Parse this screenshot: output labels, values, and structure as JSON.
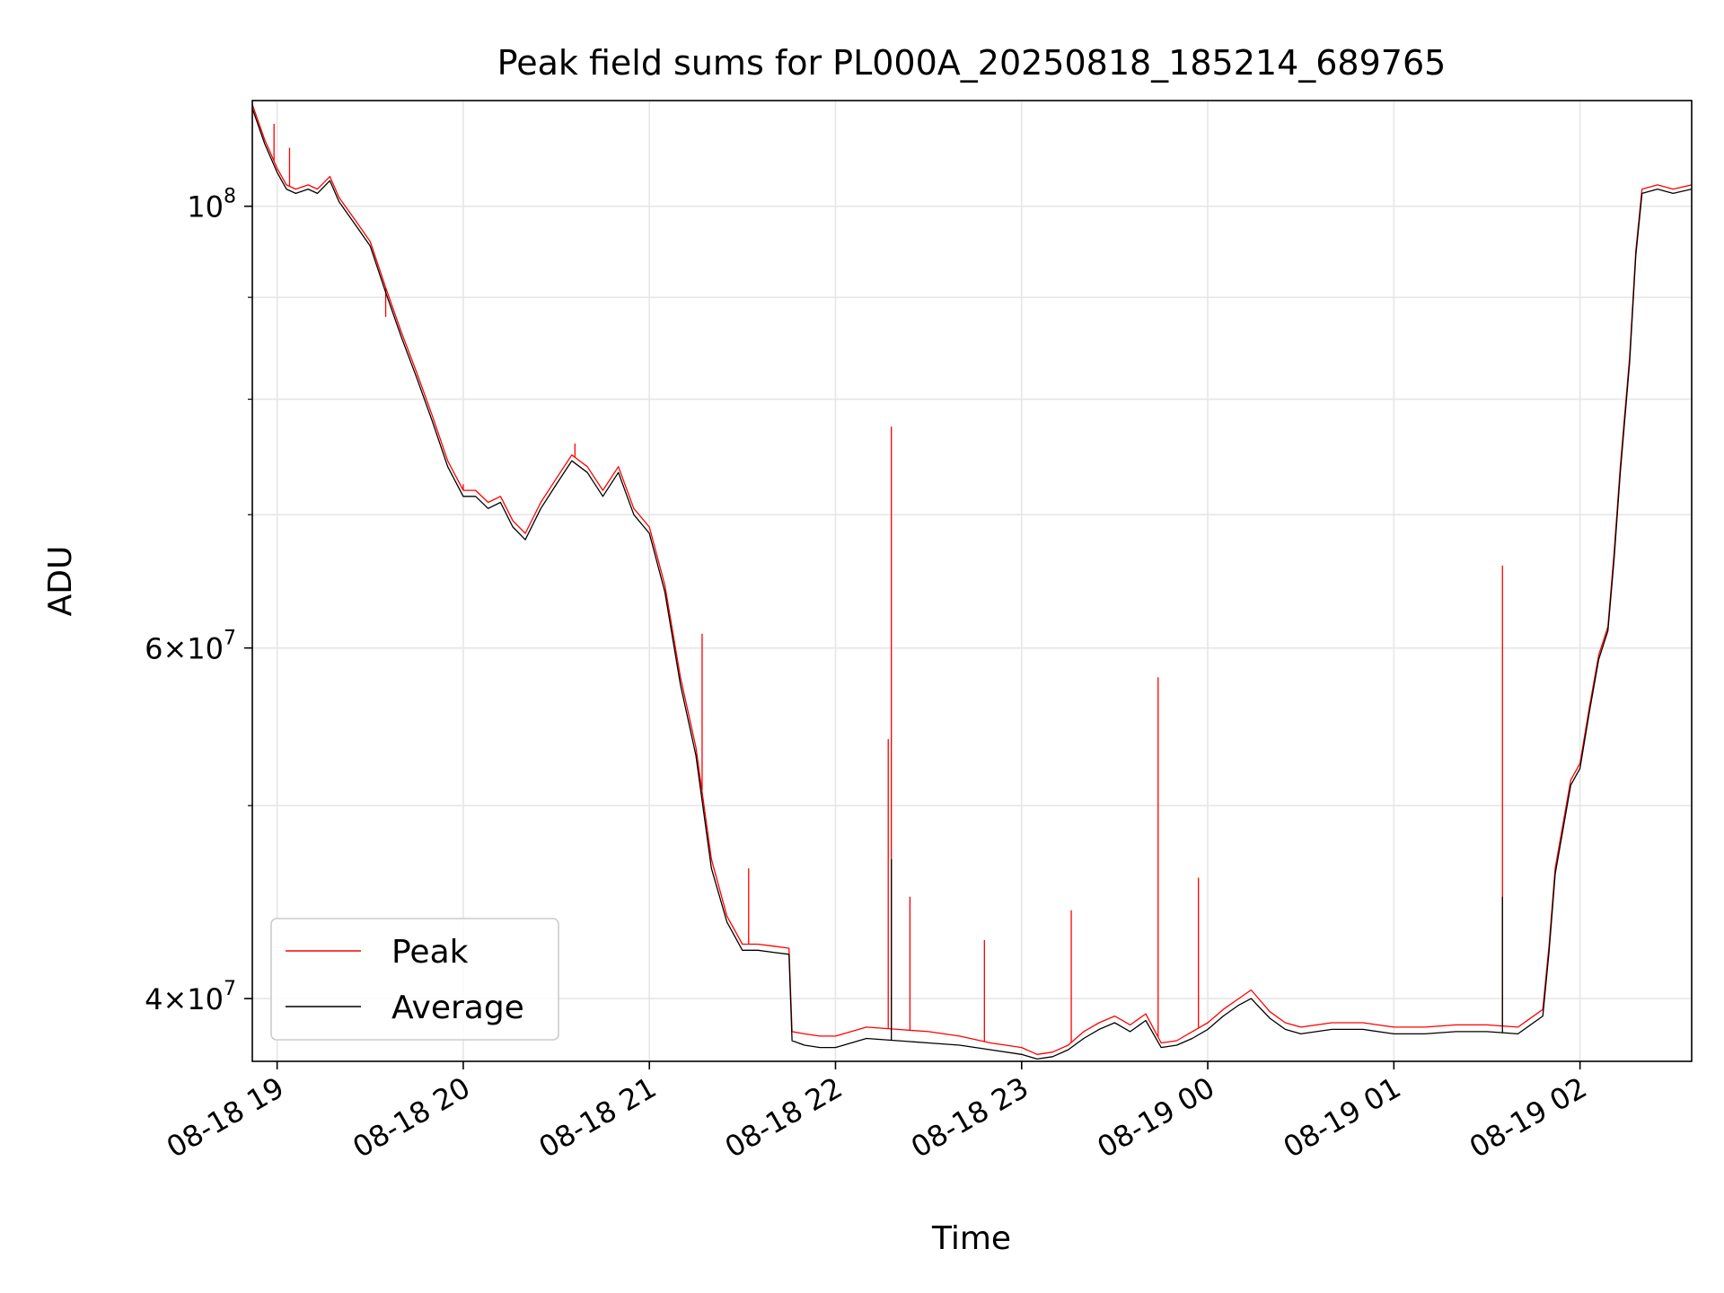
{
  "chart_data": {
    "type": "line",
    "title": "Peak field sums for PL000A_20250818_185214_689765",
    "xlabel": "Time",
    "ylabel": "ADU",
    "x_type": "datetime",
    "xlim": [
      "2025-08-18 18:52",
      "2025-08-19 02:36"
    ],
    "x_ticks": [
      {
        "t": "2025-08-18 19:00",
        "label": "08-18 19"
      },
      {
        "t": "2025-08-18 20:00",
        "label": "08-18 20"
      },
      {
        "t": "2025-08-18 21:00",
        "label": "08-18 21"
      },
      {
        "t": "2025-08-18 22:00",
        "label": "08-18 22"
      },
      {
        "t": "2025-08-18 23:00",
        "label": "08-18 23"
      },
      {
        "t": "2025-08-19 00:00",
        "label": "08-19 00"
      },
      {
        "t": "2025-08-19 01:00",
        "label": "08-19 01"
      },
      {
        "t": "2025-08-19 02:00",
        "label": "08-19 02"
      }
    ],
    "y_scale": "log",
    "ylim": [
      37200000,
      113000000
    ],
    "y_major_ticks": [
      {
        "v": 40000000,
        "mant": "4",
        "exp": "7"
      },
      {
        "v": 60000000,
        "mant": "6",
        "exp": "7"
      },
      {
        "v": 100000000,
        "mant": "",
        "exp": "8"
      }
    ],
    "y_minor_ticks": [
      50000000,
      70000000,
      80000000,
      90000000
    ],
    "grid": true,
    "legend": {
      "placement": "lower-left"
    },
    "series": [
      {
        "name": "Peak",
        "color": "#ff0000",
        "points": [
          [
            "2025-08-18 18:52",
            112500000
          ],
          [
            "2025-08-18 18:56",
            108000000
          ],
          [
            "2025-08-18 19:00",
            104500000
          ],
          [
            "2025-08-18 19:03",
            102500000
          ],
          [
            "2025-08-18 19:06",
            102000000
          ],
          [
            "2025-08-18 19:10",
            102500000
          ],
          [
            "2025-08-18 19:13",
            102000000
          ],
          [
            "2025-08-18 19:17",
            103500000
          ],
          [
            "2025-08-18 19:20",
            101000000
          ],
          [
            "2025-08-18 19:25",
            98500000
          ],
          [
            "2025-08-18 19:30",
            96000000
          ],
          [
            "2025-08-18 19:35",
            91000000
          ],
          [
            "2025-08-18 19:40",
            86500000
          ],
          [
            "2025-08-18 19:45",
            82500000
          ],
          [
            "2025-08-18 19:50",
            78500000
          ],
          [
            "2025-08-18 19:55",
            74500000
          ],
          [
            "2025-08-18 20:00",
            72000000
          ],
          [
            "2025-08-18 20:04",
            72000000
          ],
          [
            "2025-08-18 20:08",
            71000000
          ],
          [
            "2025-08-18 20:12",
            71500000
          ],
          [
            "2025-08-18 20:16",
            69500000
          ],
          [
            "2025-08-18 20:20",
            68500000
          ],
          [
            "2025-08-18 20:25",
            71000000
          ],
          [
            "2025-08-18 20:30",
            73000000
          ],
          [
            "2025-08-18 20:35",
            75000000
          ],
          [
            "2025-08-18 20:40",
            74000000
          ],
          [
            "2025-08-18 20:45",
            72000000
          ],
          [
            "2025-08-18 20:50",
            74000000
          ],
          [
            "2025-08-18 20:55",
            70500000
          ],
          [
            "2025-08-18 21:00",
            69000000
          ],
          [
            "2025-08-18 21:05",
            64500000
          ],
          [
            "2025-08-18 21:10",
            58000000
          ],
          [
            "2025-08-18 21:15",
            53500000
          ],
          [
            "2025-08-18 21:20",
            47000000
          ],
          [
            "2025-08-18 21:25",
            44000000
          ],
          [
            "2025-08-18 21:30",
            42600000
          ],
          [
            "2025-08-18 21:35",
            42600000
          ],
          [
            "2025-08-18 21:40",
            42500000
          ],
          [
            "2025-08-18 21:45",
            42400000
          ],
          [
            "2025-08-18 21:46",
            38500000
          ],
          [
            "2025-08-18 21:50",
            38400000
          ],
          [
            "2025-08-18 21:55",
            38300000
          ],
          [
            "2025-08-18 22:00",
            38300000
          ],
          [
            "2025-08-18 22:10",
            38700000
          ],
          [
            "2025-08-18 22:20",
            38600000
          ],
          [
            "2025-08-18 22:30",
            38500000
          ],
          [
            "2025-08-18 22:40",
            38300000
          ],
          [
            "2025-08-18 22:50",
            38000000
          ],
          [
            "2025-08-18 23:00",
            37800000
          ],
          [
            "2025-08-18 23:05",
            37500000
          ],
          [
            "2025-08-18 23:10",
            37600000
          ],
          [
            "2025-08-18 23:15",
            37900000
          ],
          [
            "2025-08-18 23:20",
            38500000
          ],
          [
            "2025-08-18 23:25",
            38900000
          ],
          [
            "2025-08-18 23:30",
            39200000
          ],
          [
            "2025-08-18 23:35",
            38800000
          ],
          [
            "2025-08-18 23:40",
            39300000
          ],
          [
            "2025-08-18 23:45",
            38000000
          ],
          [
            "2025-08-18 23:50",
            38100000
          ],
          [
            "2025-08-18 23:55",
            38500000
          ],
          [
            "2025-08-19 00:00",
            38900000
          ],
          [
            "2025-08-19 00:05",
            39500000
          ],
          [
            "2025-08-19 00:10",
            40000000
          ],
          [
            "2025-08-19 00:14",
            40400000
          ],
          [
            "2025-08-19 00:20",
            39400000
          ],
          [
            "2025-08-19 00:25",
            38900000
          ],
          [
            "2025-08-19 00:30",
            38700000
          ],
          [
            "2025-08-19 00:40",
            38900000
          ],
          [
            "2025-08-19 00:50",
            38900000
          ],
          [
            "2025-08-19 01:00",
            38700000
          ],
          [
            "2025-08-19 01:10",
            38700000
          ],
          [
            "2025-08-19 01:20",
            38800000
          ],
          [
            "2025-08-19 01:30",
            38800000
          ],
          [
            "2025-08-19 01:40",
            38700000
          ],
          [
            "2025-08-19 01:48",
            39500000
          ],
          [
            "2025-08-19 01:50",
            42500000
          ],
          [
            "2025-08-19 01:52",
            46500000
          ],
          [
            "2025-08-19 01:57",
            51500000
          ],
          [
            "2025-08-19 02:00",
            52500000
          ],
          [
            "2025-08-19 02:03",
            56000000
          ],
          [
            "2025-08-19 02:06",
            59500000
          ],
          [
            "2025-08-19 02:09",
            61500000
          ],
          [
            "2025-08-19 02:11",
            67000000
          ],
          [
            "2025-08-19 02:13",
            74000000
          ],
          [
            "2025-08-19 02:16",
            84000000
          ],
          [
            "2025-08-19 02:18",
            95000000
          ],
          [
            "2025-08-19 02:20",
            102000000
          ],
          [
            "2025-08-19 02:25",
            102500000
          ],
          [
            "2025-08-19 02:30",
            102000000
          ],
          [
            "2025-08-19 02:36",
            102500000
          ]
        ],
        "spikes": [
          [
            "2025-08-18 18:59",
            110000000
          ],
          [
            "2025-08-18 19:04",
            107000000
          ],
          [
            "2025-08-18 19:35",
            88000000
          ],
          [
            "2025-08-18 20:00",
            72500000
          ],
          [
            "2025-08-18 20:36",
            76000000
          ],
          [
            "2025-08-18 21:17",
            61000000
          ],
          [
            "2025-08-18 21:32",
            46500000
          ],
          [
            "2025-08-18 22:17",
            54000000
          ],
          [
            "2025-08-18 22:18",
            77500000
          ],
          [
            "2025-08-18 22:24",
            45000000
          ],
          [
            "2025-08-18 22:48",
            42800000
          ],
          [
            "2025-08-18 23:16",
            44300000
          ],
          [
            "2025-08-18 23:44",
            58000000
          ],
          [
            "2025-08-18 23:57",
            46000000
          ],
          [
            "2025-08-19 01:35",
            66000000
          ]
        ]
      },
      {
        "name": "Average",
        "color": "#000000",
        "points": [
          [
            "2025-08-18 18:52",
            112000000
          ],
          [
            "2025-08-18 18:56",
            107500000
          ],
          [
            "2025-08-18 19:00",
            104000000
          ],
          [
            "2025-08-18 19:03",
            102000000
          ],
          [
            "2025-08-18 19:06",
            101500000
          ],
          [
            "2025-08-18 19:10",
            102000000
          ],
          [
            "2025-08-18 19:13",
            101500000
          ],
          [
            "2025-08-18 19:17",
            103000000
          ],
          [
            "2025-08-18 19:20",
            100500000
          ],
          [
            "2025-08-18 19:25",
            98000000
          ],
          [
            "2025-08-18 19:30",
            95500000
          ],
          [
            "2025-08-18 19:35",
            90500000
          ],
          [
            "2025-08-18 19:40",
            86000000
          ],
          [
            "2025-08-18 19:45",
            82000000
          ],
          [
            "2025-08-18 19:50",
            78000000
          ],
          [
            "2025-08-18 19:55",
            74000000
          ],
          [
            "2025-08-18 20:00",
            71500000
          ],
          [
            "2025-08-18 20:04",
            71500000
          ],
          [
            "2025-08-18 20:08",
            70500000
          ],
          [
            "2025-08-18 20:12",
            71000000
          ],
          [
            "2025-08-18 20:16",
            69000000
          ],
          [
            "2025-08-18 20:20",
            68000000
          ],
          [
            "2025-08-18 20:25",
            70500000
          ],
          [
            "2025-08-18 20:30",
            72500000
          ],
          [
            "2025-08-18 20:35",
            74500000
          ],
          [
            "2025-08-18 20:40",
            73500000
          ],
          [
            "2025-08-18 20:45",
            71500000
          ],
          [
            "2025-08-18 20:50",
            73500000
          ],
          [
            "2025-08-18 20:55",
            70000000
          ],
          [
            "2025-08-18 21:00",
            68500000
          ],
          [
            "2025-08-18 21:05",
            64000000
          ],
          [
            "2025-08-18 21:10",
            57500000
          ],
          [
            "2025-08-18 21:15",
            53000000
          ],
          [
            "2025-08-18 21:20",
            46500000
          ],
          [
            "2025-08-18 21:25",
            43700000
          ],
          [
            "2025-08-18 21:30",
            42300000
          ],
          [
            "2025-08-18 21:35",
            42300000
          ],
          [
            "2025-08-18 21:40",
            42200000
          ],
          [
            "2025-08-18 21:45",
            42100000
          ],
          [
            "2025-08-18 21:46",
            38100000
          ],
          [
            "2025-08-18 21:50",
            37900000
          ],
          [
            "2025-08-18 21:55",
            37800000
          ],
          [
            "2025-08-18 22:00",
            37800000
          ],
          [
            "2025-08-18 22:10",
            38200000
          ],
          [
            "2025-08-18 22:20",
            38100000
          ],
          [
            "2025-08-18 22:30",
            38000000
          ],
          [
            "2025-08-18 22:40",
            37900000
          ],
          [
            "2025-08-18 22:50",
            37700000
          ],
          [
            "2025-08-18 23:00",
            37500000
          ],
          [
            "2025-08-18 23:05",
            37300000
          ],
          [
            "2025-08-18 23:10",
            37400000
          ],
          [
            "2025-08-18 23:15",
            37700000
          ],
          [
            "2025-08-18 23:20",
            38200000
          ],
          [
            "2025-08-18 23:25",
            38600000
          ],
          [
            "2025-08-18 23:30",
            38900000
          ],
          [
            "2025-08-18 23:35",
            38500000
          ],
          [
            "2025-08-18 23:40",
            39000000
          ],
          [
            "2025-08-18 23:45",
            37800000
          ],
          [
            "2025-08-18 23:50",
            37900000
          ],
          [
            "2025-08-18 23:55",
            38200000
          ],
          [
            "2025-08-19 00:00",
            38600000
          ],
          [
            "2025-08-19 00:05",
            39200000
          ],
          [
            "2025-08-19 00:10",
            39700000
          ],
          [
            "2025-08-19 00:14",
            40000000
          ],
          [
            "2025-08-19 00:20",
            39100000
          ],
          [
            "2025-08-19 00:25",
            38600000
          ],
          [
            "2025-08-19 00:30",
            38400000
          ],
          [
            "2025-08-19 00:40",
            38600000
          ],
          [
            "2025-08-19 00:50",
            38600000
          ],
          [
            "2025-08-19 01:00",
            38400000
          ],
          [
            "2025-08-19 01:10",
            38400000
          ],
          [
            "2025-08-19 01:20",
            38500000
          ],
          [
            "2025-08-19 01:30",
            38500000
          ],
          [
            "2025-08-19 01:40",
            38400000
          ],
          [
            "2025-08-19 01:48",
            39200000
          ],
          [
            "2025-08-19 01:50",
            42200000
          ],
          [
            "2025-08-19 01:52",
            46200000
          ],
          [
            "2025-08-19 01:57",
            51200000
          ],
          [
            "2025-08-19 02:00",
            52200000
          ],
          [
            "2025-08-19 02:03",
            55700000
          ],
          [
            "2025-08-19 02:06",
            59200000
          ],
          [
            "2025-08-19 02:09",
            61200000
          ],
          [
            "2025-08-19 02:11",
            66500000
          ],
          [
            "2025-08-19 02:13",
            73500000
          ],
          [
            "2025-08-19 02:16",
            83500000
          ],
          [
            "2025-08-19 02:18",
            94500000
          ],
          [
            "2025-08-19 02:20",
            101500000
          ],
          [
            "2025-08-19 02:25",
            102000000
          ],
          [
            "2025-08-19 02:30",
            101500000
          ],
          [
            "2025-08-19 02:36",
            102000000
          ]
        ],
        "spikes": [
          [
            "2025-08-18 22:18",
            47000000
          ],
          [
            "2025-08-19 01:35",
            45000000
          ]
        ]
      }
    ]
  }
}
